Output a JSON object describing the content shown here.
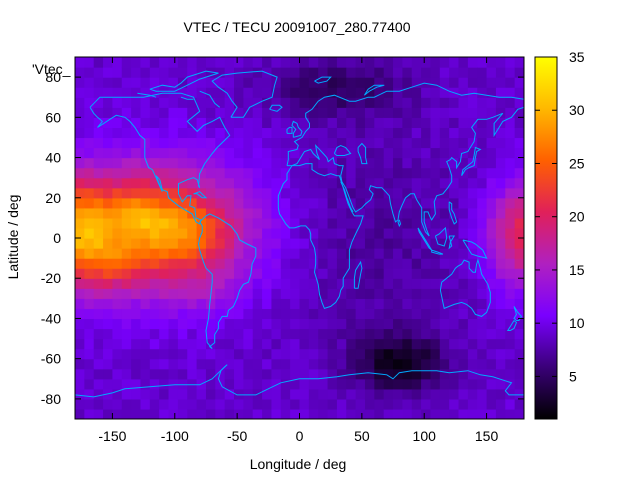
{
  "chart_data": {
    "type": "heatmap",
    "title": "VTEC / TECU 20091007_280.77400",
    "xlabel": "Longitude / deg",
    "ylabel": "Latitude / deg",
    "xlim": [
      -180,
      180
    ],
    "ylim": [
      -90,
      90
    ],
    "x_ticks": [
      -150,
      -100,
      -50,
      0,
      50,
      100,
      150
    ],
    "y_ticks": [
      -80,
      -60,
      -40,
      -20,
      0,
      20,
      40,
      60,
      80
    ],
    "colorbar": {
      "range": [
        1,
        35
      ],
      "ticks": [
        5,
        10,
        15,
        20,
        25,
        30,
        35
      ],
      "colormap": [
        "#000000",
        "#3a0078",
        "#7a00ff",
        "#b020c0",
        "#e0205a",
        "#ff6000",
        "#ffb800",
        "#ffff00"
      ]
    },
    "legend_entry": "'Vtec_",
    "coastline_color": "#00aaff",
    "background_level": 9,
    "features": [
      {
        "lon": -120,
        "lat": 5,
        "sigma_lon": 55,
        "sigma_lat": 22,
        "amp": 17
      },
      {
        "lon": -90,
        "lat": 3,
        "sigma_lon": 22,
        "sigma_lat": 10,
        "amp": 5
      },
      {
        "lon": -130,
        "lat": 12,
        "sigma_lon": 15,
        "sigma_lat": 8,
        "amp": 4
      },
      {
        "lon": -145,
        "lat": -12,
        "sigma_lon": 15,
        "sigma_lat": 8,
        "amp": 4
      },
      {
        "lon": -75,
        "lat": -25,
        "sigma_lon": 20,
        "sigma_lat": 10,
        "amp": 2
      },
      {
        "lon": 180,
        "lat": 2,
        "sigma_lon": 20,
        "sigma_lat": 18,
        "amp": 12
      },
      {
        "lon": -180,
        "lat": 2,
        "sigma_lon": 20,
        "sigma_lat": 18,
        "amp": 12
      },
      {
        "lon": 80,
        "lat": -62,
        "sigma_lon": 25,
        "sigma_lat": 10,
        "amp": -7
      },
      {
        "lon": 30,
        "lat": 75,
        "sigma_lon": 40,
        "sigma_lat": 10,
        "amp": -4
      },
      {
        "lon": 60,
        "lat": 0,
        "sigma_lon": 50,
        "sigma_lat": 40,
        "amp": -2
      }
    ]
  }
}
